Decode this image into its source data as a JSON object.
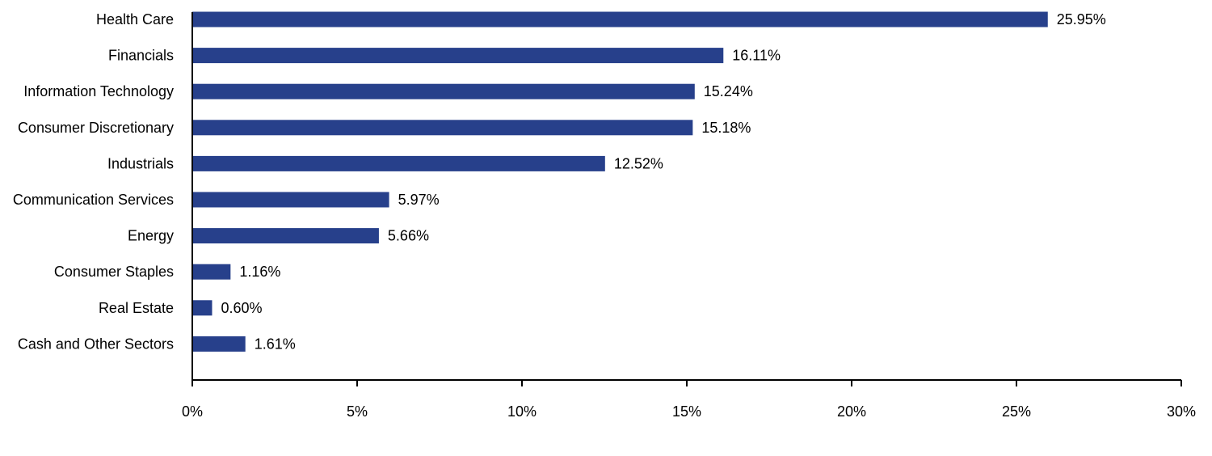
{
  "chart_data": {
    "type": "bar",
    "orientation": "horizontal",
    "categories": [
      "Health Care",
      "Financials",
      "Information Technology",
      "Consumer Discretionary",
      "Industrials",
      "Communication Services",
      "Energy",
      "Consumer Staples",
      "Real Estate",
      "Cash and Other Sectors"
    ],
    "values": [
      25.95,
      16.11,
      15.24,
      15.18,
      12.52,
      5.97,
      5.66,
      1.16,
      0.6,
      1.61
    ],
    "value_labels": [
      "25.95%",
      "16.11%",
      "15.24%",
      "15.18%",
      "12.52%",
      "5.97%",
      "5.66%",
      "1.16%",
      "0.60%",
      "1.61%"
    ],
    "xlim": [
      0,
      30
    ],
    "x_ticks": [
      0,
      5,
      10,
      15,
      20,
      25,
      30
    ],
    "x_tick_labels": [
      "0%",
      "5%",
      "10%",
      "15%",
      "20%",
      "25%",
      "30%"
    ],
    "title": "",
    "xlabel": "",
    "ylabel": "",
    "grid": false,
    "legend": "none",
    "bar_color": "#27408B"
  }
}
